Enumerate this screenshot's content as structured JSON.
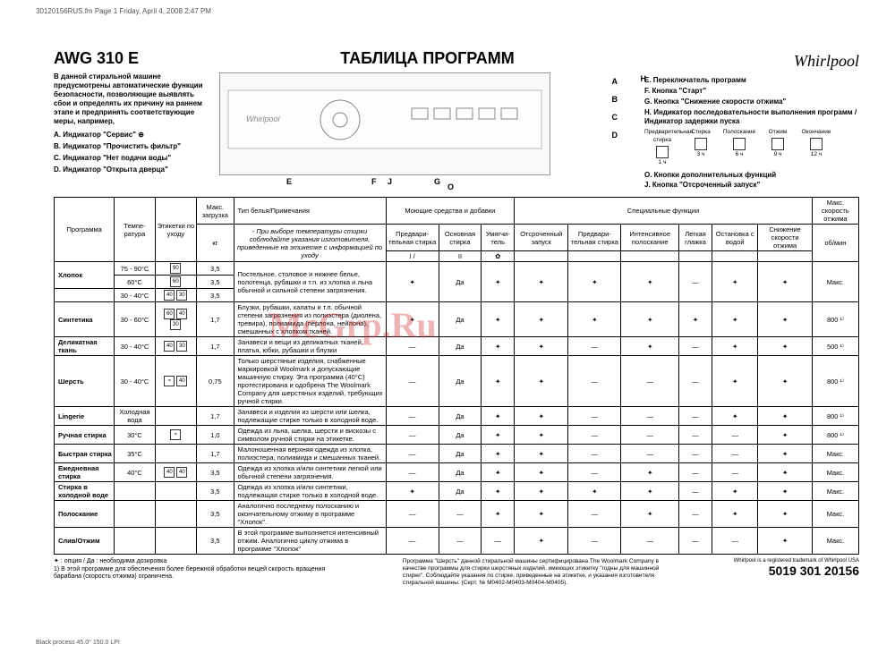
{
  "meta": {
    "header": "30120156RUS.fm  Page 1  Friday, April 4, 2008  2:47 PM",
    "print_footer": "Black process 45.0° 150.0 LPI"
  },
  "title": {
    "model": "AWG 310 E",
    "main": "ТАБЛИЦА ПРОГРАММ",
    "logo": "Whirlpool"
  },
  "intro": {
    "text": "В данной стиральной машине предусмотрены автоматические функции безопасности, позволяющие выявлять сбои и определять их причину на раннем этапе и предпринять соответствующие меры, например,",
    "A": "A.  Индикатор \"Сервис\" ⊕",
    "B": "B.  Индикатор \"Прочистить фильтр\"",
    "C": "C.  Индикатор \"Нет подачи воды\"",
    "D": "D.  Индикатор \"Открыта дверца\""
  },
  "legend": {
    "E": "E.  Переключатель программ",
    "F": "F.  Кнопка \"Старт\"",
    "G": "G.  Кнопка \"Снижение скорости отжима\"",
    "H": "H.  Индикатор последовательности выполнения программ / Индикатор задержки пуска",
    "phase1": "Предварительная стирка",
    "phase2": "Стирка",
    "phase3": "Полоскание",
    "phase4": "Отжим",
    "phase5": "Окончание",
    "delay1": "1 ч",
    "delay2": "3 ч",
    "delay3": "6 ч",
    "delay4": "9 ч",
    "delay5": "12 ч",
    "O": "O.  Кнопки дополнительных функций",
    "J": "J.  Кнопка \"Отсроченный запуск\"",
    "lblE": "E",
    "lblF": "F",
    "lblJ": "J",
    "lblG": "G",
    "lblO": "O",
    "lblH": "H",
    "lblA": "A",
    "lblB": "B",
    "lblC": "C",
    "lblD": "D"
  },
  "table": {
    "headers": {
      "prog": "Программа",
      "temp": "Темпе-ратура",
      "care": "Этикетки по уходу",
      "load": "Макс. загрузка",
      "load_unit": "кг",
      "desc_head": "Тип белья/Примечания",
      "desc_note": "- При выборе температуры стирки соблюдайте указания изготовителя, приведенные на этикетке с информацией по уходу",
      "deterg": "Моющие средства и добавки",
      "prewash": "Предвари-тельная стирка",
      "mainwash": "Основная стирка",
      "softener": "Умягчи-тель",
      "special": "Специальные функции",
      "delay": "Отсроченный запуск",
      "prewash2": "Предвари-тельная стирка",
      "intensive": "Интенсивное полоскание",
      "easyiron": "Легкая глажка",
      "rinsehold": "Остановка с водой",
      "spinred": "Снижение скорости отжима",
      "maxspin": "Макс. скорость отжима",
      "maxspin_unit": "об/мин"
    },
    "icons": {
      "i1": "I /",
      "i2": "II",
      "i3": "✿"
    },
    "rows": [
      {
        "prog": "Хлопок",
        "temp": "75 - 90°C",
        "care": "90",
        "load": "3,5",
        "desc": "",
        "pre": "",
        "main": "",
        "soft": "",
        "delay": "",
        "f1": "",
        "f2": "",
        "f3": "",
        "f4": "",
        "f5": "",
        "spin": "",
        "rowspan_desc": true
      },
      {
        "prog": "Хлопок",
        "temp": "60°C",
        "care": "60",
        "load": "3,5",
        "desc": "Постельное, столовое и нижнее белье, полотенца, рубашки и т.п. из хлопка и льна обычной и сильной степени загрязнения.",
        "pre": "✦",
        "main": "Да",
        "soft": "✦",
        "delay": "✦",
        "f1": "✦",
        "f2": "✦",
        "f3": "—",
        "f4": "✦",
        "f5": "✦",
        "spin": "Макс."
      },
      {
        "prog": "",
        "temp": "30 - 40°C",
        "care": "40 30",
        "load": "3,5",
        "desc": "",
        "pre": "",
        "main": "",
        "soft": "",
        "delay": "",
        "f1": "",
        "f2": "",
        "f3": "",
        "f4": "",
        "f5": "",
        "spin": ""
      },
      {
        "prog": "Синтетика",
        "temp": "30 - 60°C",
        "care": "60 40 30",
        "load": "1,7",
        "desc": "Блузки, рубашки, халаты и т.п. обычной степени загрязнения из полиэстера (диолена, тревира), полиамида (перлона, нейлона), смешанных с хлопком тканей.",
        "pre": "✦",
        "main": "Да",
        "soft": "✦",
        "delay": "✦",
        "f1": "✦",
        "f2": "✦",
        "f3": "✦",
        "f4": "✦",
        "f5": "✦",
        "spin": "800 ¹⁾"
      },
      {
        "prog": "Деликатная ткань",
        "temp": "30 - 40°C",
        "care": "40 30",
        "load": "1,7",
        "desc": "Занавеси и вещи из деликатных тканей, платья, юбки, рубашки и блузки",
        "pre": "—",
        "main": "Да",
        "soft": "✦",
        "delay": "✦",
        "f1": "—",
        "f2": "✦",
        "f3": "—",
        "f4": "✦",
        "f5": "✦",
        "spin": "500 ¹⁾"
      },
      {
        "prog": "Шерсть",
        "temp": "30 - 40°C",
        "care": "⚬ 40",
        "load": "0,75",
        "desc": "Только шерстяные изделия, снабженные маркировкой Woolmark и допускающие машинную стирку. Эта программа (40°C) протестирована и одобрена The Woolmark Company для шерстяных изделий, требующих ручной стирки.",
        "pre": "—",
        "main": "Да",
        "soft": "✦",
        "delay": "✦",
        "f1": "—",
        "f2": "—",
        "f3": "—",
        "f4": "✦",
        "f5": "✦",
        "spin": "800 ¹⁾"
      },
      {
        "prog": "Lingerie",
        "temp": "Холодная вода",
        "care": "",
        "load": "1,7",
        "desc": "Занавеси и изделия из шерсти или шелка, подлежащие стирке только в холодной воде.",
        "pre": "—",
        "main": "Да",
        "soft": "✦",
        "delay": "✦",
        "f1": "—",
        "f2": "—",
        "f3": "—",
        "f4": "✦",
        "f5": "✦",
        "spin": "800 ¹⁾"
      },
      {
        "prog": "Ручная стирка",
        "temp": "30°C",
        "care": "⚬",
        "load": "1,0",
        "desc": "Одежда из льна, шелка, шерсти и вискозы с символом ручной стирки на этикетке.",
        "pre": "—",
        "main": "Да",
        "soft": "✦",
        "delay": "✦",
        "f1": "—",
        "f2": "—",
        "f3": "—",
        "f4": "—",
        "f5": "✦",
        "spin": "800 ¹⁾"
      },
      {
        "prog": "Быстрая стирка",
        "temp": "35°C",
        "care": "",
        "load": "1,7",
        "desc": "Малоношенная верхняя одежда из хлопка, полиэстера, полиамида и смешанных тканей.",
        "pre": "—",
        "main": "Да",
        "soft": "✦",
        "delay": "✦",
        "f1": "—",
        "f2": "—",
        "f3": "—",
        "f4": "—",
        "f5": "✦",
        "spin": "Макс."
      },
      {
        "prog": "Ежедневная стирка",
        "temp": "40°C",
        "care": "40 40",
        "load": "3,5",
        "desc": "Одежда из хлопка и/или синтетики легкой или обычной степени загрязнения.",
        "pre": "—",
        "main": "Да",
        "soft": "✦",
        "delay": "✦",
        "f1": "—",
        "f2": "✦",
        "f3": "—",
        "f4": "—",
        "f5": "✦",
        "spin": "Макс."
      },
      {
        "prog": "Стирка в холодной воде",
        "temp": "",
        "care": "",
        "load": "3,5",
        "desc": "Одежда из хлопка и/или синтетики, подлежащая стирке только в холодной воде.",
        "pre": "✦",
        "main": "Да",
        "soft": "✦",
        "delay": "✦",
        "f1": "✦",
        "f2": "✦",
        "f3": "—",
        "f4": "✦",
        "f5": "✦",
        "spin": "Макс."
      },
      {
        "prog": "Полоскание",
        "temp": "",
        "care": "",
        "load": "3,5",
        "desc": "Аналогично последнему полосканию и окончательному отжиму в программе \"Хлопок\".",
        "pre": "—",
        "main": "—",
        "soft": "✦",
        "delay": "✦",
        "f1": "—",
        "f2": "✦",
        "f3": "—",
        "f4": "✦",
        "f5": "✦",
        "spin": "Макс."
      },
      {
        "prog": "Слив/Отжим",
        "temp": "",
        "care": "",
        "load": "3,5",
        "desc": "В этой программе выполняется интенсивный отжим. Аналогично циклу отжима в программе \"Хлопок\"",
        "pre": "—",
        "main": "—",
        "soft": "—",
        "delay": "✦",
        "f1": "—",
        "f2": "—",
        "f3": "—",
        "f4": "—",
        "f5": "✦",
        "spin": "Макс."
      }
    ]
  },
  "footnotes": {
    "left1": "✦ : опция / Да : необходима дозировка",
    "left2": "1) В этой программе для обеспечения более бережной обработки вещей скорость вращения барабана (скорость отжима) ограничена.",
    "center": "Программа \"Шерсть\" данной стиральной машины сертифицирована The Woolmark Company в качестве программы для стирки шерстяных изделий, имеющих этикетку \"годны для машинной стирки\". Соблюдайте указания по стирке, приведенные на этикетке, и указания изготовителя стиральной машины. (Серт. № M0402-M0403-M0404-M0405).",
    "trademark": "Whirlpool is a registered trademark of Whirlpool USA",
    "partnum": "5019 301 20156"
  },
  "watermark": "McGrp.Ru"
}
